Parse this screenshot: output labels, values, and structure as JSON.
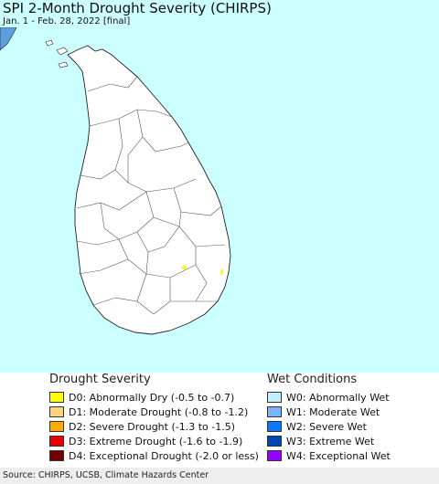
{
  "header": {
    "title": "SPI 2-Month Drought Severity (CHIRPS)",
    "subtitle": "Jan. 1 - Feb. 28, 2022 [final]"
  },
  "colors": {
    "water": "#ccffff",
    "land": "#ffffff",
    "mainland_corner": "#5b9fe0"
  },
  "legend": {
    "drought": {
      "heading": "Drought Severity",
      "items": [
        {
          "label": "D0: Abnormally Dry (-0.5 to -0.7)",
          "color": "#ffff00"
        },
        {
          "label": "D1: Moderate Drought (-0.8 to -1.2)",
          "color": "#fcd37f"
        },
        {
          "label": "D2: Severe Drought (-1.3 to -1.5)",
          "color": "#ffaa00"
        },
        {
          "label": "D3: Extreme Drought (-1.6 to -1.9)",
          "color": "#e60000"
        },
        {
          "label": "D4: Exceptional Drought (-2.0 or less)",
          "color": "#730000"
        }
      ]
    },
    "wet": {
      "heading": "Wet Conditions",
      "items": [
        {
          "label": "W0: Abnormally Wet",
          "color": "#bef0ff"
        },
        {
          "label": "W1: Moderate Wet",
          "color": "#78b4ff"
        },
        {
          "label": "W2: Severe Wet",
          "color": "#0a78ff"
        },
        {
          "label": "W3: Extreme Wet",
          "color": "#0046b4"
        },
        {
          "label": "W4: Exceptional Wet",
          "color": "#9600ff"
        }
      ]
    }
  },
  "footer": {
    "source": "Source: CHIRPS, UCSB, Climate Hazards Center"
  }
}
